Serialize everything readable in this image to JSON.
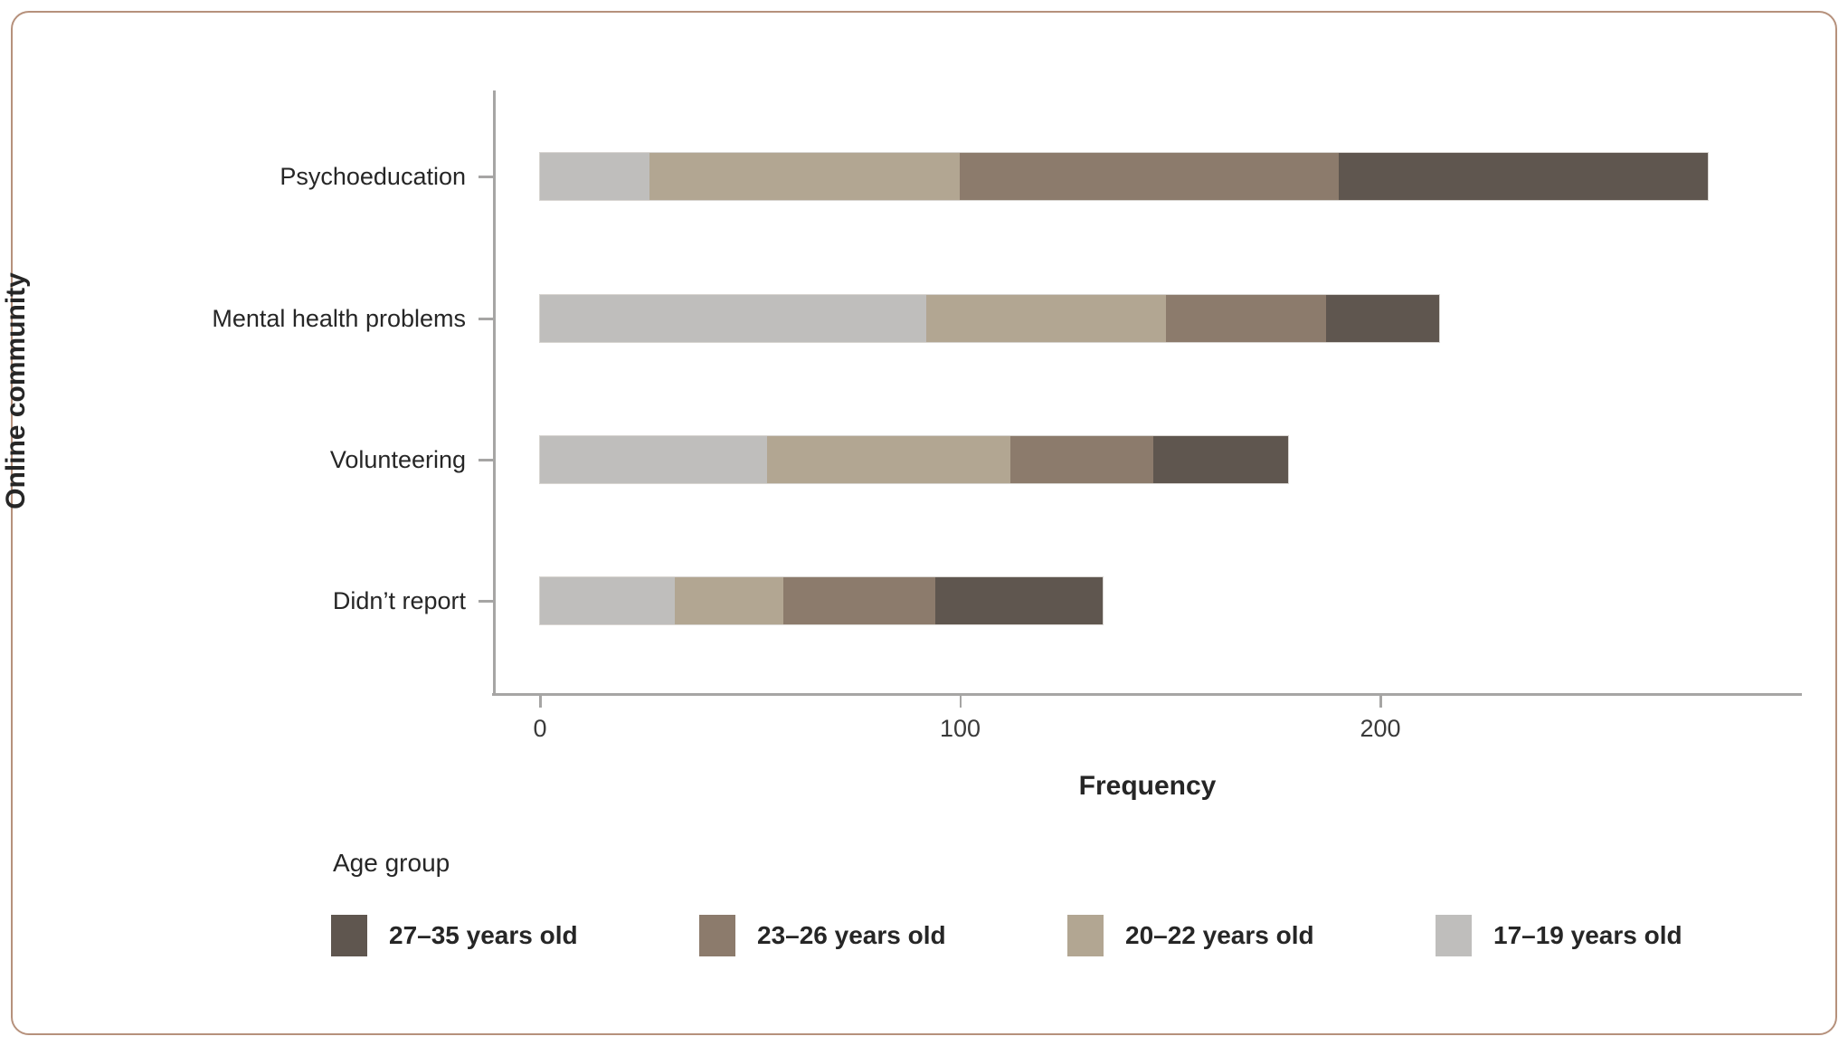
{
  "frame": {
    "border_color": "#b6917c"
  },
  "axis": {
    "line_color": "#a6a5a4"
  },
  "chart_data": {
    "type": "bar",
    "orientation": "horizontal",
    "stacked": true,
    "title": "",
    "xlabel": "Frequency",
    "ylabel": "Online community",
    "xlim": [
      0,
      300
    ],
    "xticks": [
      "0",
      "100",
      "200"
    ],
    "xtick_values": [
      0,
      100,
      200
    ],
    "grid": false,
    "categories": [
      "Psychoeducation",
      "Mental health problems",
      "Volunteering",
      "Didn’t report"
    ],
    "series": [
      {
        "name": "17–19 years old",
        "color": "#bfbebc",
        "values": [
          26,
          92,
          54,
          32
        ]
      },
      {
        "name": "20–22 years old",
        "color": "#b2a692",
        "values": [
          74,
          57,
          58,
          26
        ]
      },
      {
        "name": "23–26 years old",
        "color": "#8c7b6c",
        "values": [
          90,
          38,
          34,
          36
        ]
      },
      {
        "name": "27–35 years old",
        "color": "#5f564f",
        "values": [
          88,
          27,
          32,
          40
        ]
      }
    ],
    "totals": {
      "Psychoeducation": 278,
      "Mental health problems": 214,
      "Volunteering": 178,
      "Didn’t report": 134
    },
    "legend": {
      "title": "Age group",
      "position": "bottom",
      "entries": [
        "27–35 years old",
        "23–26 years old",
        "20–22 years old",
        "17–19 years old"
      ]
    }
  }
}
